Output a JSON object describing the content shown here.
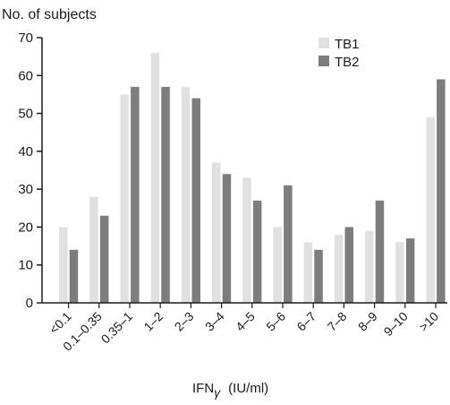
{
  "chart_data": {
    "type": "bar",
    "title": "",
    "ylabel": "No. of subjects",
    "xlabel_main": "IFN",
    "xlabel_sub": "γ",
    "xlabel_unit": "(IU/ml)",
    "ylim": [
      0,
      70
    ],
    "yticks": [
      "0",
      "10",
      "20",
      "30",
      "40",
      "50",
      "60",
      "70"
    ],
    "grid": false,
    "legend_position": "top-right",
    "categories": [
      "<0.1",
      "0.1–0.35",
      "0.35–1",
      "1–2",
      "2–3",
      "3–4",
      "4–5",
      "5–6",
      "6–7",
      "7–8",
      "8–9",
      "9–10",
      ">10"
    ],
    "series": [
      {
        "name": "TB1",
        "color": "#e0e0e0",
        "values": [
          20,
          28,
          55,
          66,
          57,
          37,
          33,
          20,
          16,
          18,
          19,
          16,
          49
        ]
      },
      {
        "name": "TB2",
        "color": "#7d7d7d",
        "values": [
          14,
          23,
          57,
          57,
          54,
          34,
          27,
          31,
          14,
          20,
          27,
          17,
          59
        ]
      }
    ]
  }
}
